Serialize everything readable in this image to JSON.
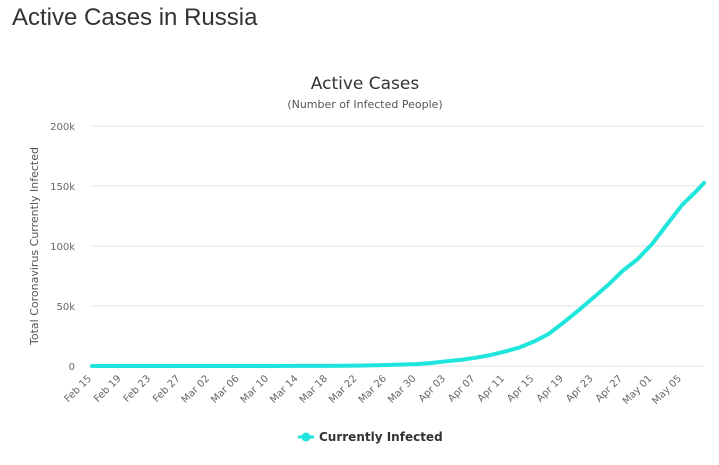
{
  "page": {
    "heading": "Active Cases in Russia"
  },
  "chart_data": {
    "type": "line",
    "title": "Active Cases",
    "subtitle": "(Number of Infected People)",
    "xlabel": "",
    "ylabel": "Total Coronavirus Currently Infected",
    "ylim": [
      0,
      200000
    ],
    "yticks": [
      0,
      50000,
      100000,
      150000,
      200000
    ],
    "ytick_labels": [
      "0",
      "50k",
      "100k",
      "150k",
      "200k"
    ],
    "x_tick_labels": [
      "Feb 15",
      "Feb 19",
      "Feb 23",
      "Feb 27",
      "Mar 02",
      "Mar 06",
      "Mar 10",
      "Mar 14",
      "Mar 18",
      "Mar 22",
      "Mar 26",
      "Mar 30",
      "Apr 03",
      "Apr 07",
      "Apr 11",
      "Apr 15",
      "Apr 19",
      "Apr 23",
      "Apr 27",
      "May 01",
      "May 05"
    ],
    "x_start": "Feb 15",
    "x_end": "May 08",
    "grid": true,
    "legend_position": "bottom-center",
    "series": [
      {
        "name": "Currently Infected",
        "color": "#1fe5dd",
        "x": [
          "Feb 15",
          "Feb 19",
          "Feb 23",
          "Feb 27",
          "Mar 02",
          "Mar 06",
          "Mar 10",
          "Mar 14",
          "Mar 18",
          "Mar 22",
          "Mar 26",
          "Mar 30",
          "Apr 01",
          "Apr 03",
          "Apr 05",
          "Apr 07",
          "Apr 09",
          "Apr 11",
          "Apr 13",
          "Apr 15",
          "Apr 17",
          "Apr 19",
          "Apr 21",
          "Apr 23",
          "Apr 25",
          "Apr 27",
          "Apr 29",
          "May 01",
          "May 03",
          "May 05",
          "May 07",
          "May 08"
        ],
        "values": [
          2,
          2,
          2,
          2,
          3,
          4,
          10,
          50,
          110,
          300,
          800,
          1600,
          2500,
          3900,
          5100,
          6800,
          9100,
          12000,
          15500,
          20500,
          27000,
          36500,
          46500,
          57000,
          67500,
          79500,
          89000,
          102000,
          118000,
          134000,
          146000,
          152500
        ]
      }
    ]
  }
}
